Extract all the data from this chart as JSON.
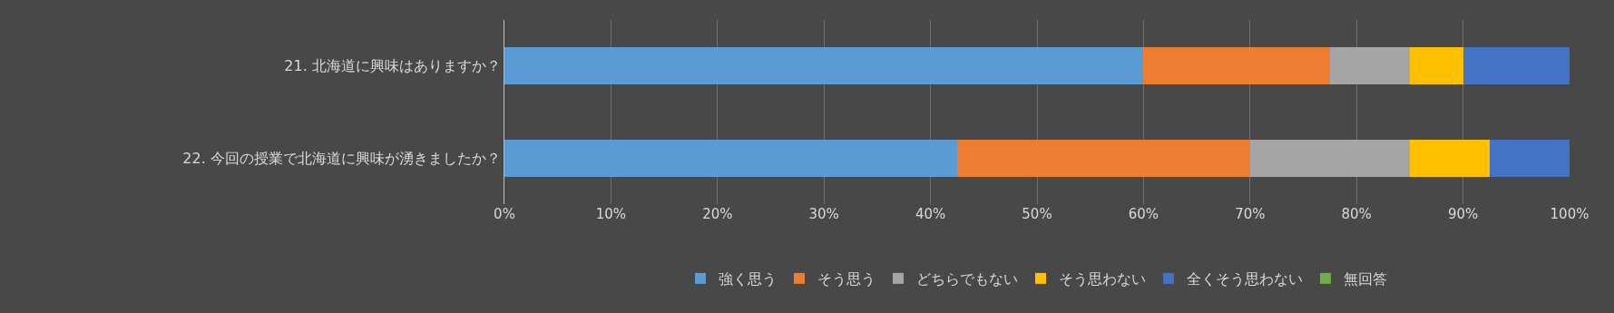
{
  "chart_data": {
    "type": "bar",
    "orientation": "horizontal",
    "stacked": true,
    "categories": [
      "21. 北海道に興味はありますか？",
      "22. 今回の授業で北海道に興味が湧きましたか？"
    ],
    "series": [
      {
        "name": "強く思う",
        "color": "#5b9bd5",
        "values": [
          60,
          42.5
        ]
      },
      {
        "name": "そう思う",
        "color": "#ed7d31",
        "values": [
          17.5,
          27.5
        ]
      },
      {
        "name": "どちらでもない",
        "color": "#a5a5a5",
        "values": [
          7.5,
          15
        ]
      },
      {
        "name": "そう思わない",
        "color": "#ffc000",
        "values": [
          5,
          7.5
        ]
      },
      {
        "name": "全くそう思わない",
        "color": "#4472c4",
        "values": [
          10,
          7.5
        ]
      },
      {
        "name": "無回答",
        "color": "#70ad47",
        "values": [
          0,
          0
        ]
      }
    ],
    "xlim": [
      0,
      100
    ],
    "xticks": [
      {
        "value": 0,
        "label": "0%"
      },
      {
        "value": 10,
        "label": "10%"
      },
      {
        "value": 20,
        "label": "20%"
      },
      {
        "value": 30,
        "label": "30%"
      },
      {
        "value": 40,
        "label": "40%"
      },
      {
        "value": 50,
        "label": "50%"
      },
      {
        "value": 60,
        "label": "60%"
      },
      {
        "value": 70,
        "label": "70%"
      },
      {
        "value": 80,
        "label": "80%"
      },
      {
        "value": 90,
        "label": "90%"
      },
      {
        "value": 100,
        "label": "100%"
      }
    ],
    "grid": "x",
    "legend": "bottom"
  }
}
